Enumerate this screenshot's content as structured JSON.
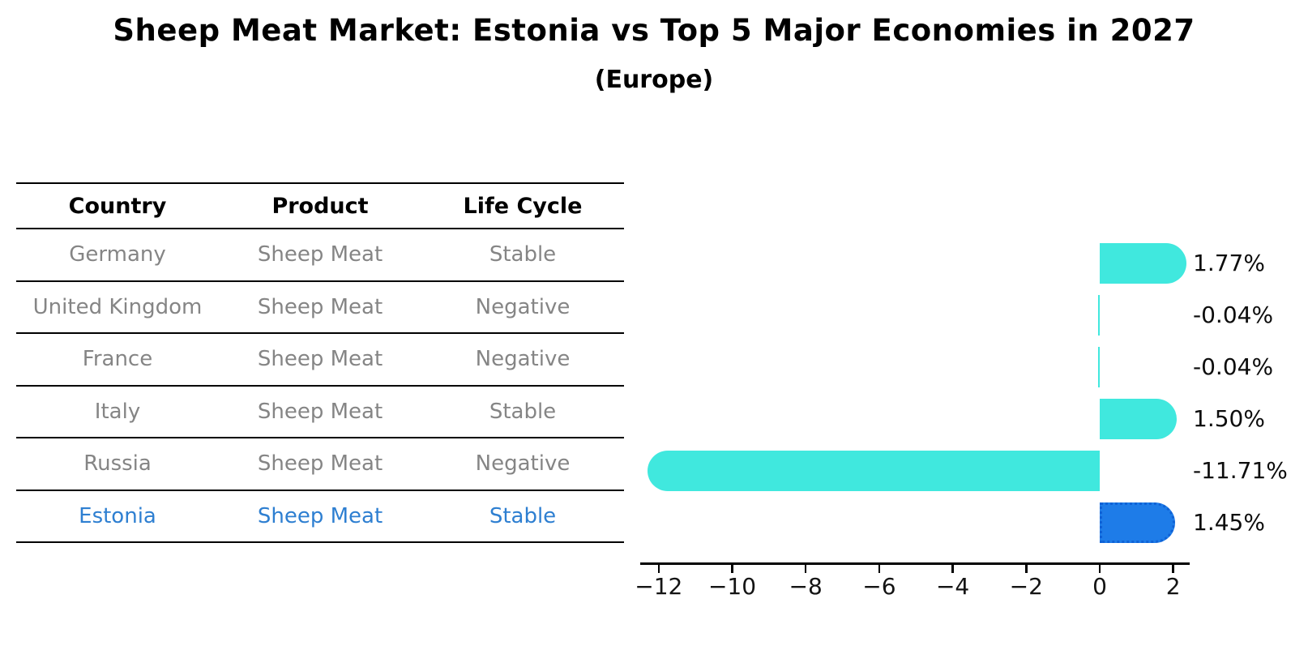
{
  "title": "Sheep Meat Market: Estonia vs Top 5 Major Economies in 2027",
  "subtitle": "(Europe)",
  "colors": {
    "bar_cyan": "#40e8de",
    "bar_blue": "#1e7ce8",
    "bar_blue_edge": "#0f62d6",
    "highlight_text": "#2e7fd1",
    "table_text": "#858585",
    "axis_text": "#141414"
  },
  "table": {
    "headers": [
      "Country",
      "Product",
      "Life Cycle"
    ],
    "rows": [
      {
        "country": "Germany",
        "product": "Sheep Meat",
        "life_cycle": "Stable",
        "highlight": false
      },
      {
        "country": "United Kingdom",
        "product": "Sheep Meat",
        "life_cycle": "Negative",
        "highlight": false
      },
      {
        "country": "France",
        "product": "Sheep Meat",
        "life_cycle": "Negative",
        "highlight": false
      },
      {
        "country": "Italy",
        "product": "Sheep Meat",
        "life_cycle": "Stable",
        "highlight": false
      },
      {
        "country": "Russia",
        "product": "Sheep Meat",
        "life_cycle": "Negative",
        "highlight": false
      },
      {
        "country": "Estonia",
        "product": "Sheep Meat",
        "life_cycle": "Stable",
        "highlight": true
      }
    ]
  },
  "chart_data": {
    "type": "bar",
    "orientation": "horizontal",
    "title": "Sheep Meat Market: Estonia vs Top 5 Major Economies in 2027 (Europe)",
    "categories": [
      "Germany",
      "United Kingdom",
      "France",
      "Italy",
      "Russia",
      "Estonia"
    ],
    "values": [
      1.77,
      -0.04,
      -0.04,
      1.5,
      -11.71,
      1.45
    ],
    "value_labels": [
      "1.77%",
      "-0.04%",
      "-0.04%",
      "1.50%",
      "-11.71%",
      "1.45%"
    ],
    "highlight_index": 5,
    "xlim": [
      -12.5,
      2.45
    ],
    "xticks": [
      -12,
      -10,
      -8,
      -6,
      -4,
      -2,
      0,
      2
    ],
    "xtick_labels": [
      "−12",
      "−10",
      "−8",
      "−6",
      "−4",
      "−2",
      "0",
      "2"
    ],
    "grid": false,
    "legend": null
  }
}
